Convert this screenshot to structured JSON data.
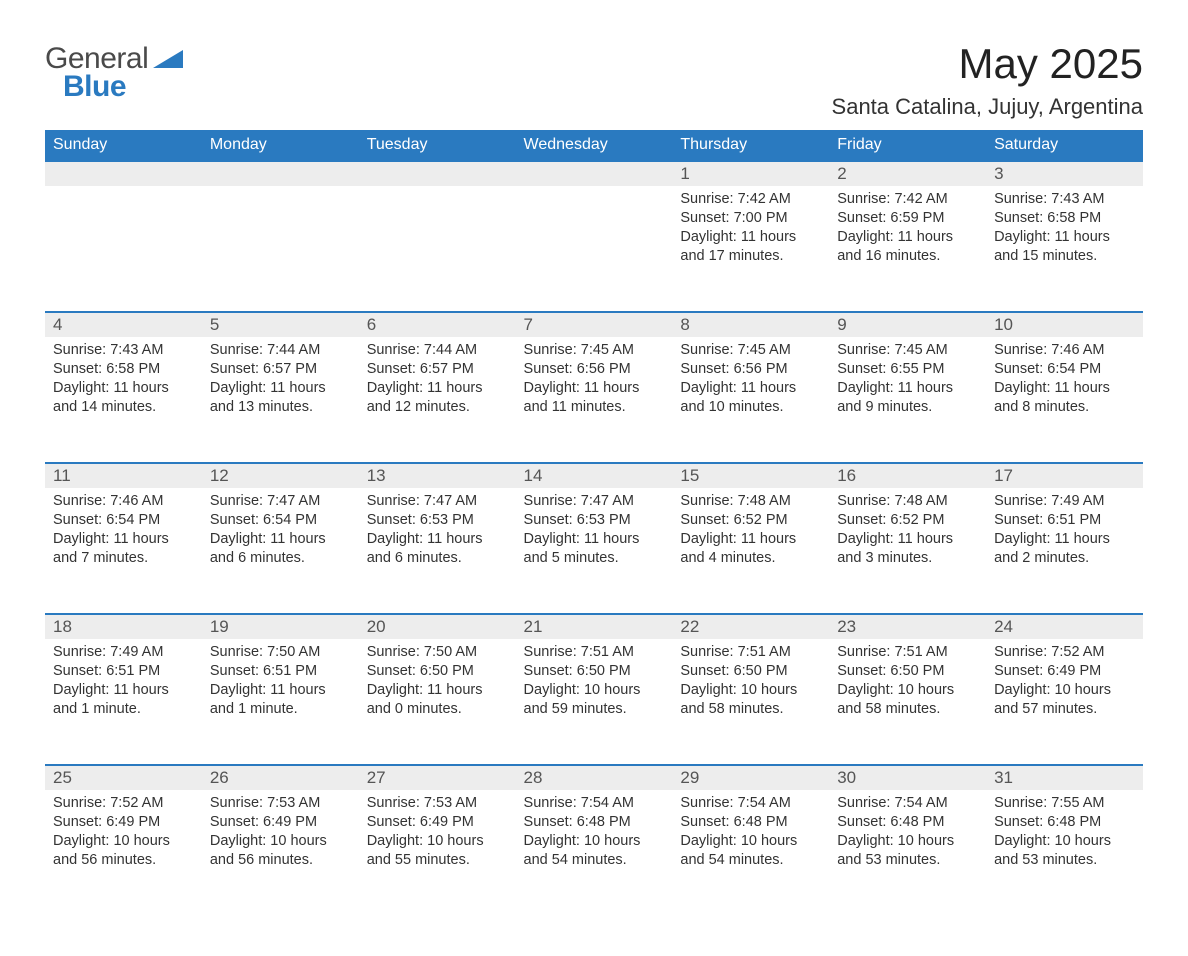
{
  "brand": {
    "word1": "General",
    "word2": "Blue",
    "tri_color": "#2a7ac0"
  },
  "title": "May 2025",
  "location": "Santa Catalina, Jujuy, Argentina",
  "colors": {
    "header_bg": "#2a7ac0",
    "header_text": "#ffffff",
    "daynum_bg": "#ededed",
    "row_border": "#2a7ac0",
    "body_text": "#333333"
  },
  "layout": {
    "columns": 7,
    "week_rows": 5,
    "first_day_column_index": 4
  },
  "day_headers": [
    "Sunday",
    "Monday",
    "Tuesday",
    "Wednesday",
    "Thursday",
    "Friday",
    "Saturday"
  ],
  "sunrise_label": "Sunrise: ",
  "sunset_label": "Sunset: ",
  "daylight_label": "Daylight: ",
  "weeks": [
    [
      null,
      null,
      null,
      null,
      {
        "n": "1",
        "sunrise": "7:42 AM",
        "sunset": "7:00 PM",
        "daylight": "11 hours and 17 minutes."
      },
      {
        "n": "2",
        "sunrise": "7:42 AM",
        "sunset": "6:59 PM",
        "daylight": "11 hours and 16 minutes."
      },
      {
        "n": "3",
        "sunrise": "7:43 AM",
        "sunset": "6:58 PM",
        "daylight": "11 hours and 15 minutes."
      }
    ],
    [
      {
        "n": "4",
        "sunrise": "7:43 AM",
        "sunset": "6:58 PM",
        "daylight": "11 hours and 14 minutes."
      },
      {
        "n": "5",
        "sunrise": "7:44 AM",
        "sunset": "6:57 PM",
        "daylight": "11 hours and 13 minutes."
      },
      {
        "n": "6",
        "sunrise": "7:44 AM",
        "sunset": "6:57 PM",
        "daylight": "11 hours and 12 minutes."
      },
      {
        "n": "7",
        "sunrise": "7:45 AM",
        "sunset": "6:56 PM",
        "daylight": "11 hours and 11 minutes."
      },
      {
        "n": "8",
        "sunrise": "7:45 AM",
        "sunset": "6:56 PM",
        "daylight": "11 hours and 10 minutes."
      },
      {
        "n": "9",
        "sunrise": "7:45 AM",
        "sunset": "6:55 PM",
        "daylight": "11 hours and 9 minutes."
      },
      {
        "n": "10",
        "sunrise": "7:46 AM",
        "sunset": "6:54 PM",
        "daylight": "11 hours and 8 minutes."
      }
    ],
    [
      {
        "n": "11",
        "sunrise": "7:46 AM",
        "sunset": "6:54 PM",
        "daylight": "11 hours and 7 minutes."
      },
      {
        "n": "12",
        "sunrise": "7:47 AM",
        "sunset": "6:54 PM",
        "daylight": "11 hours and 6 minutes."
      },
      {
        "n": "13",
        "sunrise": "7:47 AM",
        "sunset": "6:53 PM",
        "daylight": "11 hours and 6 minutes."
      },
      {
        "n": "14",
        "sunrise": "7:47 AM",
        "sunset": "6:53 PM",
        "daylight": "11 hours and 5 minutes."
      },
      {
        "n": "15",
        "sunrise": "7:48 AM",
        "sunset": "6:52 PM",
        "daylight": "11 hours and 4 minutes."
      },
      {
        "n": "16",
        "sunrise": "7:48 AM",
        "sunset": "6:52 PM",
        "daylight": "11 hours and 3 minutes."
      },
      {
        "n": "17",
        "sunrise": "7:49 AM",
        "sunset": "6:51 PM",
        "daylight": "11 hours and 2 minutes."
      }
    ],
    [
      {
        "n": "18",
        "sunrise": "7:49 AM",
        "sunset": "6:51 PM",
        "daylight": "11 hours and 1 minute."
      },
      {
        "n": "19",
        "sunrise": "7:50 AM",
        "sunset": "6:51 PM",
        "daylight": "11 hours and 1 minute."
      },
      {
        "n": "20",
        "sunrise": "7:50 AM",
        "sunset": "6:50 PM",
        "daylight": "11 hours and 0 minutes."
      },
      {
        "n": "21",
        "sunrise": "7:51 AM",
        "sunset": "6:50 PM",
        "daylight": "10 hours and 59 minutes."
      },
      {
        "n": "22",
        "sunrise": "7:51 AM",
        "sunset": "6:50 PM",
        "daylight": "10 hours and 58 minutes."
      },
      {
        "n": "23",
        "sunrise": "7:51 AM",
        "sunset": "6:50 PM",
        "daylight": "10 hours and 58 minutes."
      },
      {
        "n": "24",
        "sunrise": "7:52 AM",
        "sunset": "6:49 PM",
        "daylight": "10 hours and 57 minutes."
      }
    ],
    [
      {
        "n": "25",
        "sunrise": "7:52 AM",
        "sunset": "6:49 PM",
        "daylight": "10 hours and 56 minutes."
      },
      {
        "n": "26",
        "sunrise": "7:53 AM",
        "sunset": "6:49 PM",
        "daylight": "10 hours and 56 minutes."
      },
      {
        "n": "27",
        "sunrise": "7:53 AM",
        "sunset": "6:49 PM",
        "daylight": "10 hours and 55 minutes."
      },
      {
        "n": "28",
        "sunrise": "7:54 AM",
        "sunset": "6:48 PM",
        "daylight": "10 hours and 54 minutes."
      },
      {
        "n": "29",
        "sunrise": "7:54 AM",
        "sunset": "6:48 PM",
        "daylight": "10 hours and 54 minutes."
      },
      {
        "n": "30",
        "sunrise": "7:54 AM",
        "sunset": "6:48 PM",
        "daylight": "10 hours and 53 minutes."
      },
      {
        "n": "31",
        "sunrise": "7:55 AM",
        "sunset": "6:48 PM",
        "daylight": "10 hours and 53 minutes."
      }
    ]
  ]
}
